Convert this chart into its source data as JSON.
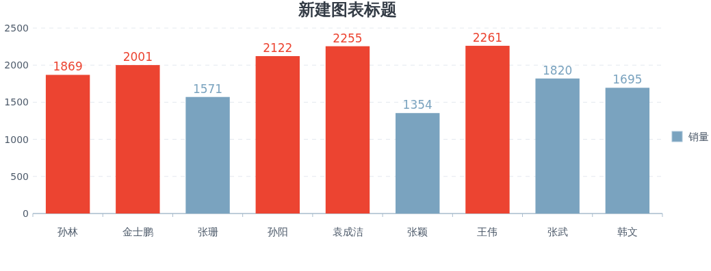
{
  "chart_data": {
    "type": "bar",
    "title": "新建图表标题",
    "categories": [
      "孙林",
      "金士鹏",
      "张珊",
      "孙阳",
      "袁成洁",
      "张颖",
      "王伟",
      "张武",
      "韩文"
    ],
    "series": [
      {
        "name": "销量",
        "color": "#7aa3bf",
        "colors": [
          "#ec4431",
          "#ec4431",
          "#7aa3bf",
          "#ec4431",
          "#ec4431",
          "#7aa3bf",
          "#ec4431",
          "#7aa3bf",
          "#7aa3bf"
        ],
        "values": [
          1869,
          2001,
          1571,
          2122,
          2255,
          1354,
          2261,
          1820,
          1695
        ]
      }
    ],
    "ylim": [
      0,
      2500
    ],
    "yticks": [
      0,
      500,
      1000,
      1500,
      2000,
      2500
    ],
    "grid": "y",
    "legend": "right",
    "data_labels": true
  }
}
